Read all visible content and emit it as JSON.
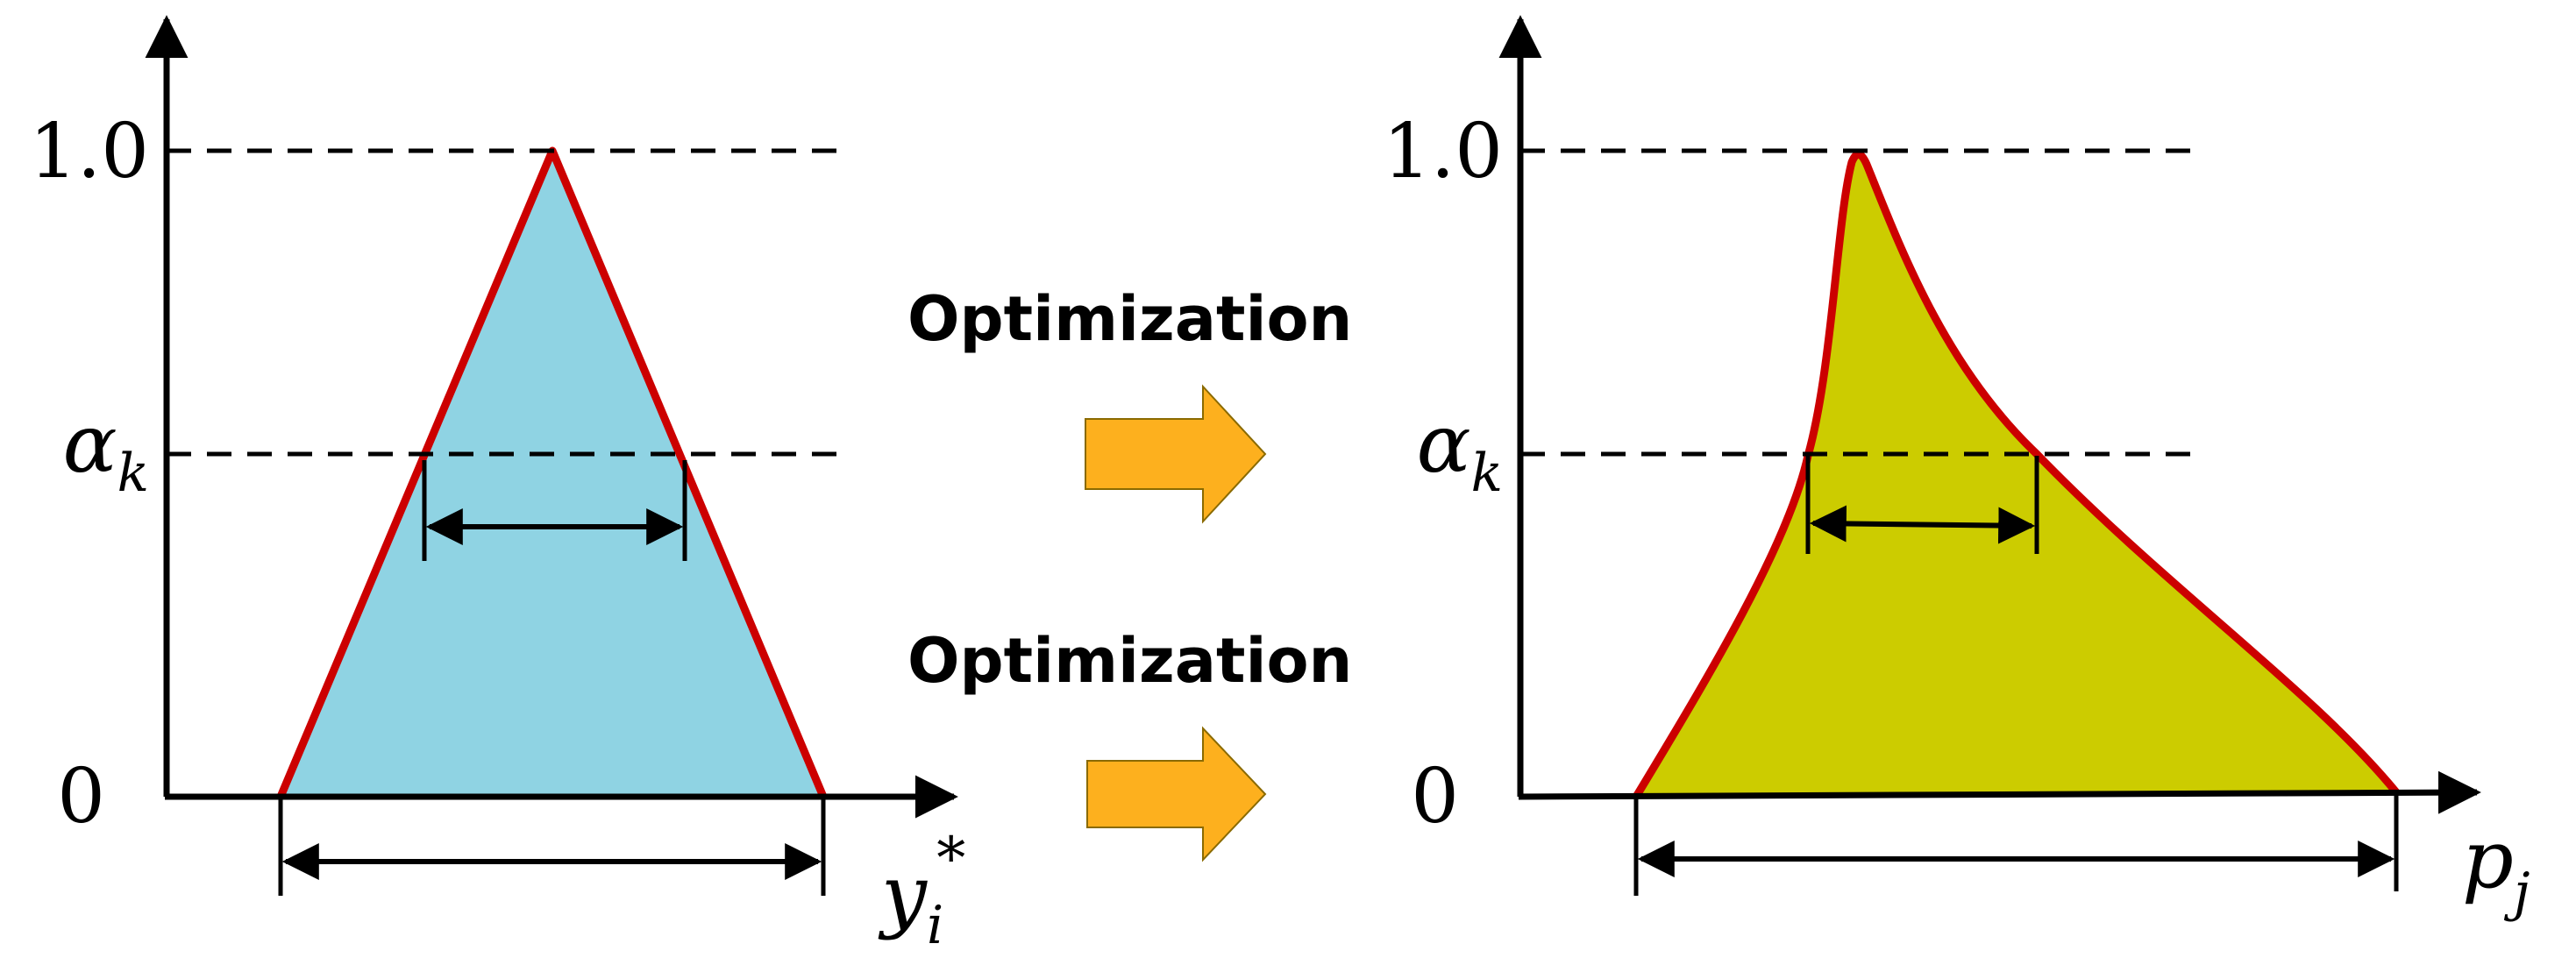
{
  "left_plot": {
    "tick_top": "1.0",
    "tick_mid_symbol": "α",
    "tick_mid_sub": "k",
    "tick_bottom": "0",
    "axis_label_symbol": "y",
    "axis_label_sub": "i",
    "axis_label_sup": "*",
    "fill_color": "#8fd3e3",
    "edge_color": "#cc0000"
  },
  "right_plot": {
    "tick_top": "1.0",
    "tick_mid_symbol": "α",
    "tick_mid_sub": "k",
    "tick_bottom": "0",
    "axis_label_symbol": "p",
    "axis_label_sub": "j",
    "fill_color": "#cccc00",
    "edge_color": "#cc0000"
  },
  "arrows": {
    "top_label": "Optimization",
    "bottom_label": "Optimization",
    "arrow_color": "#fdb01e"
  }
}
